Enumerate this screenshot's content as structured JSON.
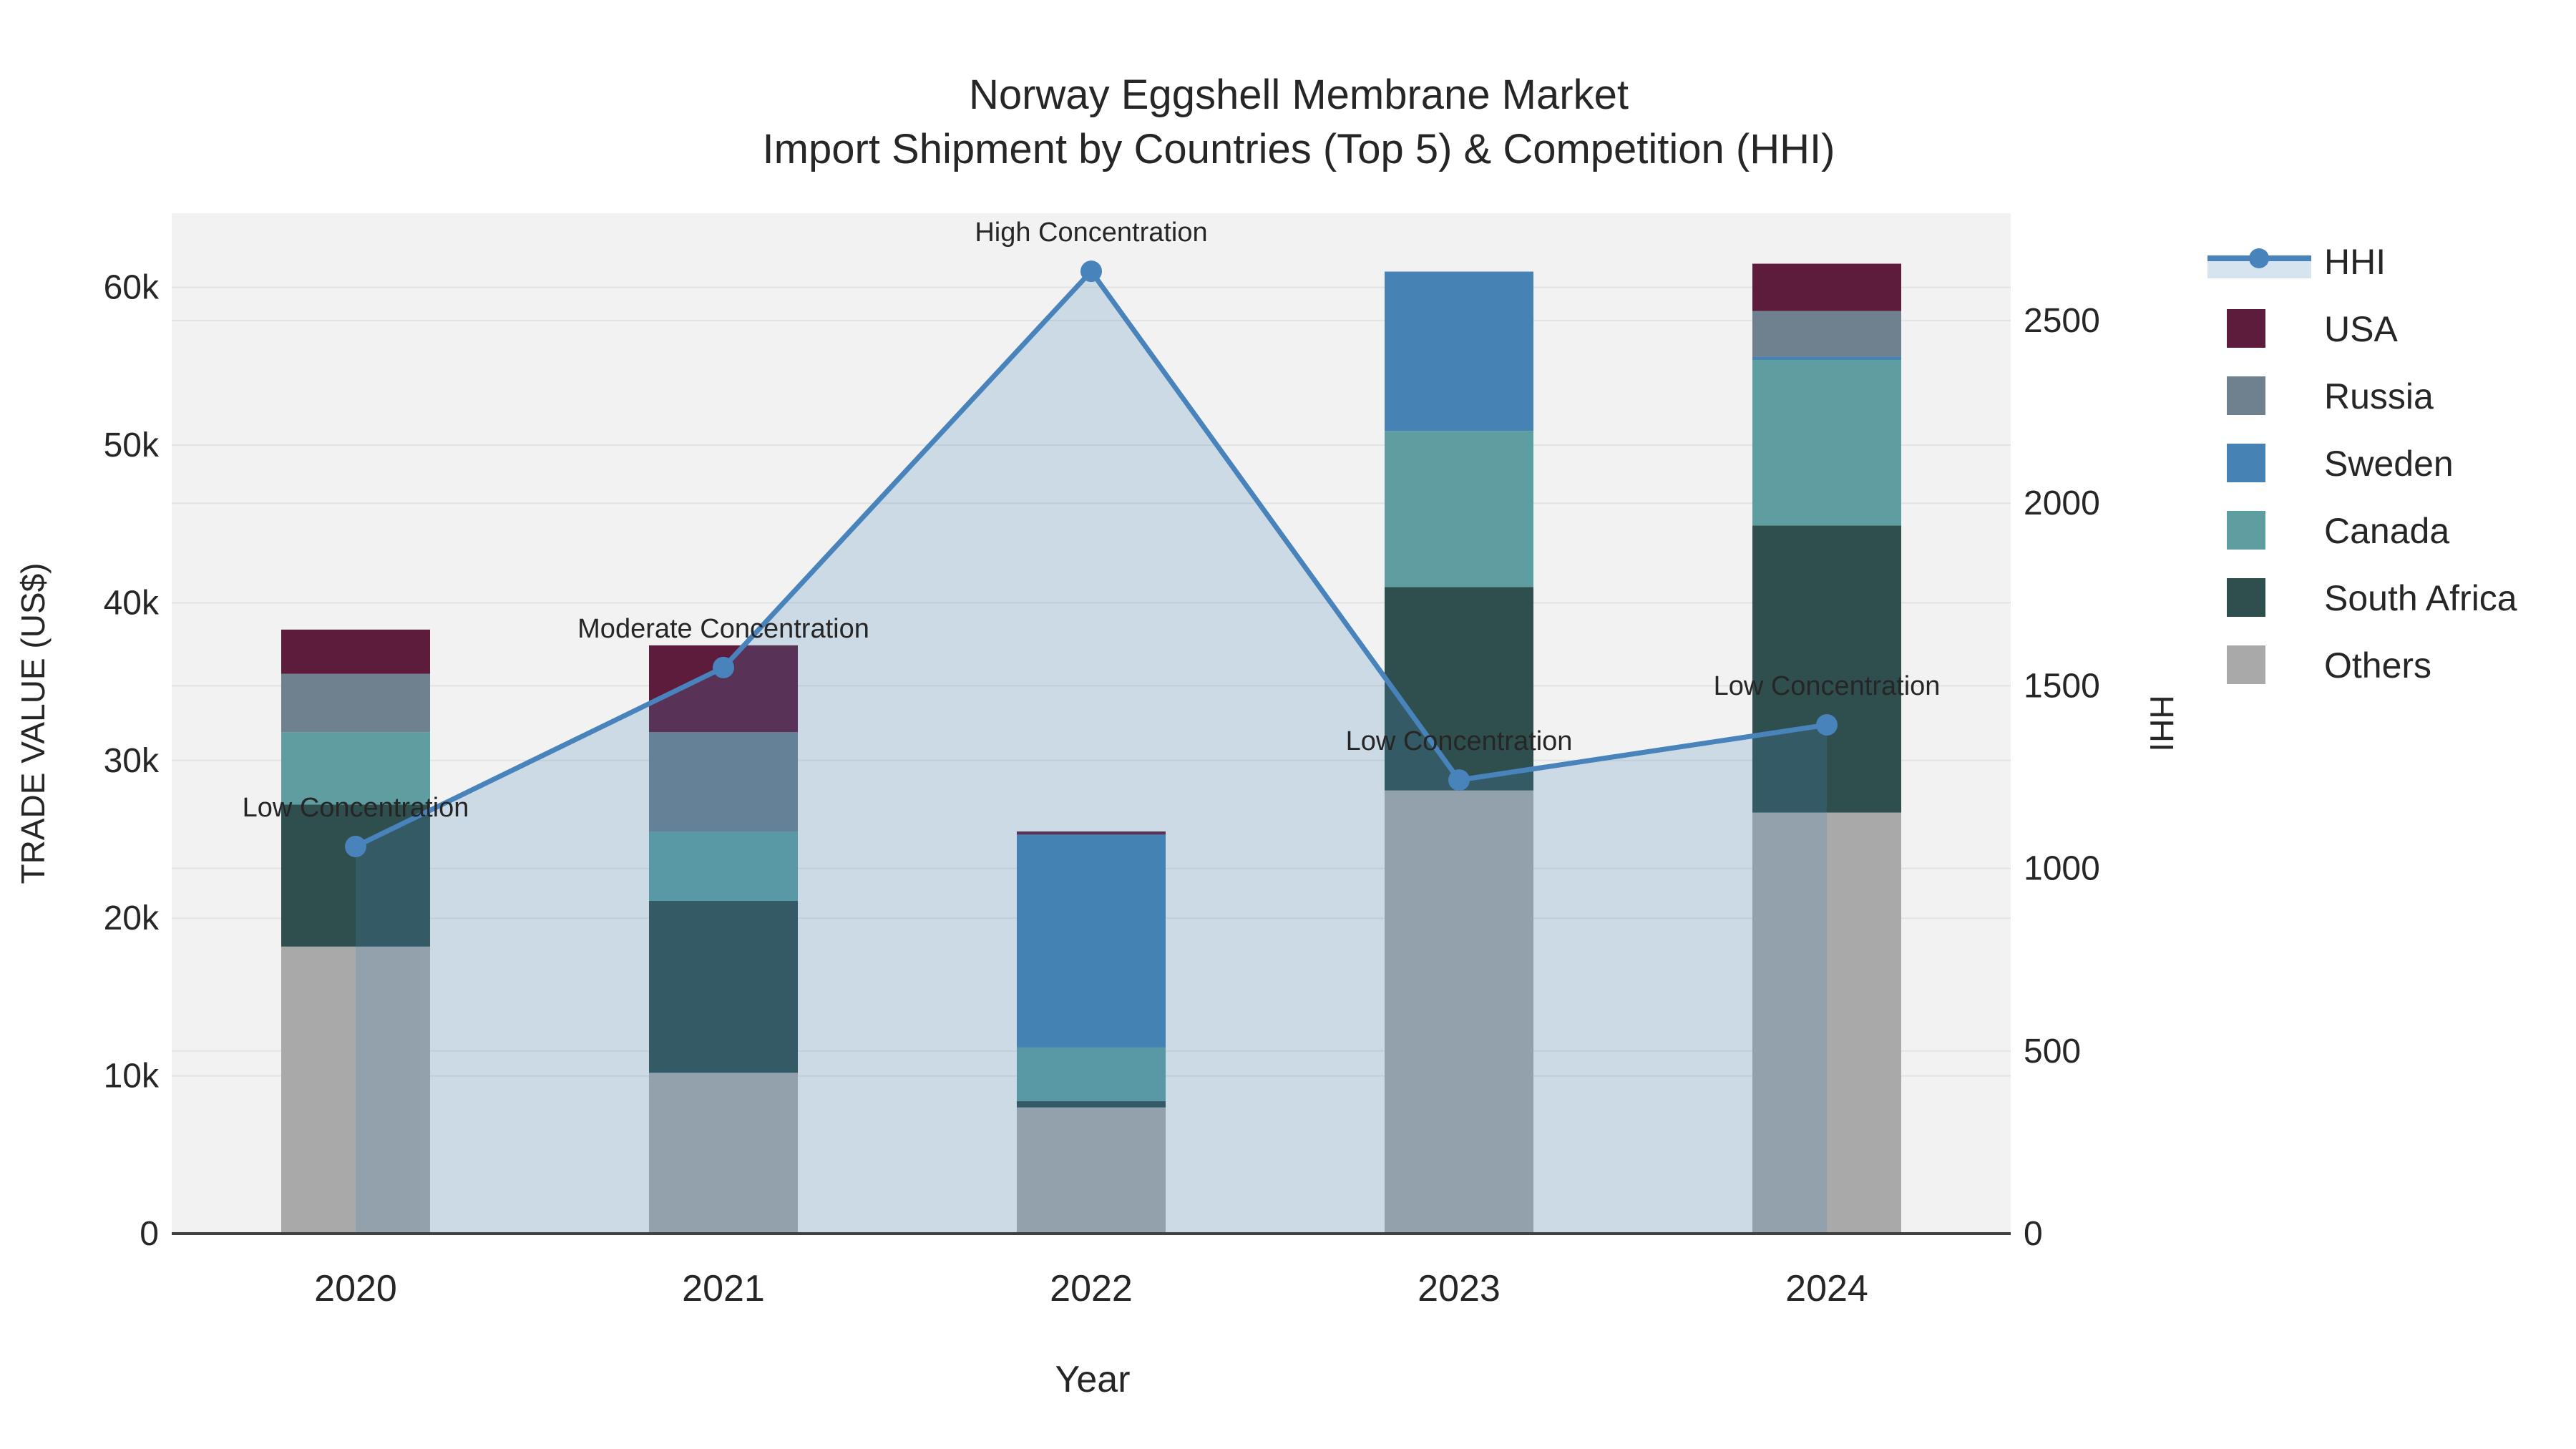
{
  "title": {
    "line1": "Norway Eggshell Membrane Market",
    "line2": "Import Shipment by Countries (Top 5) & Competition (HHI)"
  },
  "x_axis": {
    "title": "Year",
    "labels": [
      "2020",
      "2021",
      "2022",
      "2023",
      "2024"
    ]
  },
  "y_axis_left": {
    "title": "TRADE VALUE (US$)",
    "ticks": [
      "0",
      "10k",
      "20k",
      "30k",
      "40k",
      "50k",
      "60k"
    ]
  },
  "y_axis_right": {
    "title": "HHI",
    "ticks": [
      "0",
      "500",
      "1000",
      "1500",
      "2000",
      "2500"
    ]
  },
  "legend": {
    "items": [
      {
        "label": "HHI",
        "type": "line",
        "color": "#4983bb"
      },
      {
        "label": "USA",
        "type": "swatch",
        "color": "#5e1c3d"
      },
      {
        "label": "Russia",
        "type": "swatch",
        "color": "#6f808f"
      },
      {
        "label": "Sweden",
        "type": "swatch",
        "color": "#4682b4"
      },
      {
        "label": "Canada",
        "type": "swatch",
        "color": "#5f9ea0"
      },
      {
        "label": "South Africa",
        "type": "swatch",
        "color": "#2f4f4f"
      },
      {
        "label": "Others",
        "type": "swatch",
        "color": "#a9a9a9"
      }
    ]
  },
  "chart_data": {
    "type": "bar",
    "subtype": "stacked-bar-with-line",
    "title": "Norway Eggshell Membrane Market Import Shipment by Countries (Top 5) & Competition (HHI)",
    "categories": [
      "2020",
      "2021",
      "2022",
      "2023",
      "2024"
    ],
    "series": [
      {
        "name": "Others",
        "color": "#a9a9a9",
        "values": [
          18200,
          10200,
          8000,
          28100,
          26700
        ]
      },
      {
        "name": "South Africa",
        "color": "#2f4f4f",
        "values": [
          9000,
          10900,
          400,
          12900,
          18200
        ]
      },
      {
        "name": "Canada",
        "color": "#5f9ea0",
        "values": [
          4600,
          4400,
          3400,
          9900,
          10500
        ]
      },
      {
        "name": "Sweden",
        "color": "#4682b4",
        "values": [
          0,
          0,
          13500,
          10100,
          200
        ]
      },
      {
        "name": "Russia",
        "color": "#6f808f",
        "values": [
          3700,
          6300,
          0,
          0,
          2900
        ]
      },
      {
        "name": "USA",
        "color": "#5e1c3d",
        "values": [
          2800,
          5500,
          200,
          0,
          3000
        ]
      }
    ],
    "line_series": {
      "name": "HHI",
      "color": "#4983bb",
      "values": [
        1060,
        1550,
        2635,
        1242,
        1393
      ],
      "area_fill": "rgba(70,130,180,0.22)"
    },
    "annotations": [
      "Low Concentration",
      "Moderate Concentration",
      "High Concentration",
      "Low Concentration",
      "Low Concentration"
    ],
    "xlabel": "Year",
    "ylabel_left": "TRADE VALUE (US$)",
    "ylabel_right": "HHI",
    "ylim_left": [
      0,
      64700
    ],
    "ylim_right": [
      0,
      2794
    ],
    "left_tick_step": 10000,
    "right_tick_step": 500,
    "grid": true,
    "legend_position": "right",
    "plot_bg": "#f2f2f2",
    "grid_color": "#e3e3e3",
    "axis_line_color": "#404040"
  }
}
